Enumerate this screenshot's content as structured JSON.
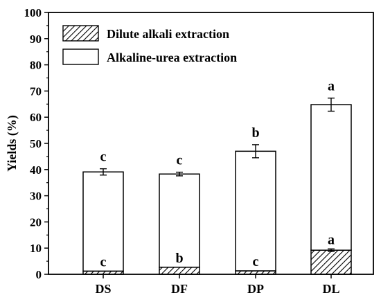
{
  "chart_data": {
    "type": "bar",
    "stacked": true,
    "title": "",
    "xlabel": "",
    "ylabel": "Yields (%)",
    "ylim": [
      0,
      100
    ],
    "yticks": [
      0,
      10,
      20,
      30,
      40,
      50,
      60,
      70,
      80,
      90,
      100
    ],
    "categories": [
      "DS",
      "DF",
      "DP",
      "DL"
    ],
    "series": [
      {
        "name": "Dilute alkali extraction",
        "pattern": "hatched",
        "values": [
          1.2,
          2.7,
          1.3,
          9.2
        ],
        "errors": [
          0,
          0,
          0,
          0.5
        ],
        "significance": [
          "c",
          "b",
          "c",
          "a"
        ]
      },
      {
        "name": "Alkaline-urea extraction",
        "pattern": "open",
        "values": [
          37.9,
          35.6,
          45.7,
          55.6
        ],
        "errors": [
          1.2,
          0.7,
          2.5,
          2.5
        ],
        "significance": [
          "c",
          "c",
          "b",
          "a"
        ]
      }
    ],
    "legend_position": "top-left",
    "grid": false
  }
}
